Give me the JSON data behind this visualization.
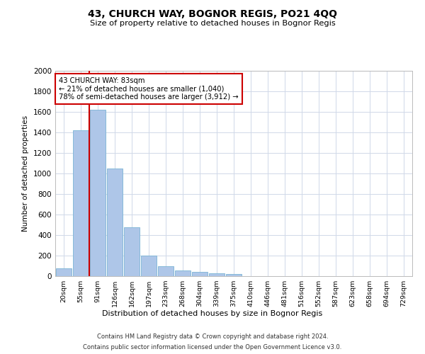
{
  "title": "43, CHURCH WAY, BOGNOR REGIS, PO21 4QQ",
  "subtitle": "Size of property relative to detached houses in Bognor Regis",
  "xlabel": "Distribution of detached houses by size in Bognor Regis",
  "ylabel": "Number of detached properties",
  "footer_line1": "Contains HM Land Registry data © Crown copyright and database right 2024.",
  "footer_line2": "Contains public sector information licensed under the Open Government Licence v3.0.",
  "categories": [
    "20sqm",
    "55sqm",
    "91sqm",
    "126sqm",
    "162sqm",
    "197sqm",
    "233sqm",
    "268sqm",
    "304sqm",
    "339sqm",
    "375sqm",
    "410sqm",
    "446sqm",
    "481sqm",
    "516sqm",
    "552sqm",
    "587sqm",
    "623sqm",
    "658sqm",
    "694sqm",
    "729sqm"
  ],
  "values": [
    75,
    1420,
    1620,
    1050,
    475,
    200,
    100,
    55,
    40,
    25,
    20,
    0,
    0,
    0,
    0,
    0,
    0,
    0,
    0,
    0,
    0
  ],
  "bar_color": "#aec6e8",
  "bar_edge_color": "#7ab4d4",
  "ylim": [
    0,
    2000
  ],
  "yticks": [
    0,
    200,
    400,
    600,
    800,
    1000,
    1200,
    1400,
    1600,
    1800,
    2000
  ],
  "annotation_title": "43 CHURCH WAY: 83sqm",
  "annotation_line1": "← 21% of detached houses are smaller (1,040)",
  "annotation_line2": "78% of semi-detached houses are larger (3,912) →",
  "vline_color": "#cc0000",
  "annotation_box_color": "#ffffff",
  "annotation_box_edge_color": "#cc0000",
  "background_color": "#ffffff",
  "grid_color": "#d0d8e8",
  "vline_x": 1.5
}
